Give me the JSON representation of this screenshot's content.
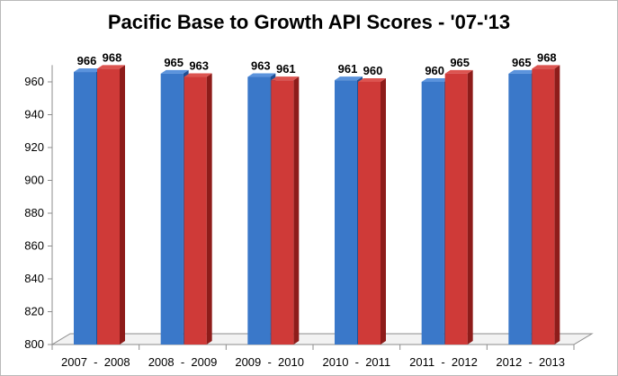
{
  "chart_data": {
    "type": "bar",
    "title": "Pacific Base to Growth API Scores - '07-'13",
    "categories": [
      "2007  -  2008",
      "2008  -  2009",
      "2009  -  2010",
      "2010  -  2011",
      "2011  -  2012",
      "2012  -  2013"
    ],
    "series": [
      {
        "values": [
          966,
          965,
          963,
          961,
          960,
          965
        ]
      },
      {
        "values": [
          968,
          963,
          961,
          960,
          965,
          968
        ]
      }
    ],
    "data_labels": [
      [
        "966",
        "965",
        "963",
        "961",
        "960",
        "965"
      ],
      [
        "968",
        "963",
        "961",
        "960",
        "965",
        "968"
      ]
    ],
    "ylim": [
      800,
      968
    ],
    "yticks": [
      "800",
      "820",
      "840",
      "860",
      "880",
      "900",
      "920",
      "940",
      "960"
    ],
    "ytick_values": [
      800,
      820,
      840,
      860,
      880,
      900,
      920,
      940,
      960
    ],
    "xlabel": "",
    "ylabel": "",
    "grid": false,
    "colors": {
      "series1_front": "#3a78c9",
      "series1_side": "#1f4f94",
      "series1_top": "#5b93dc",
      "series2_front": "#cf3a38",
      "series2_side": "#8e1c1a",
      "series2_top": "#dc5450",
      "axis": "#8c8c8c"
    }
  }
}
